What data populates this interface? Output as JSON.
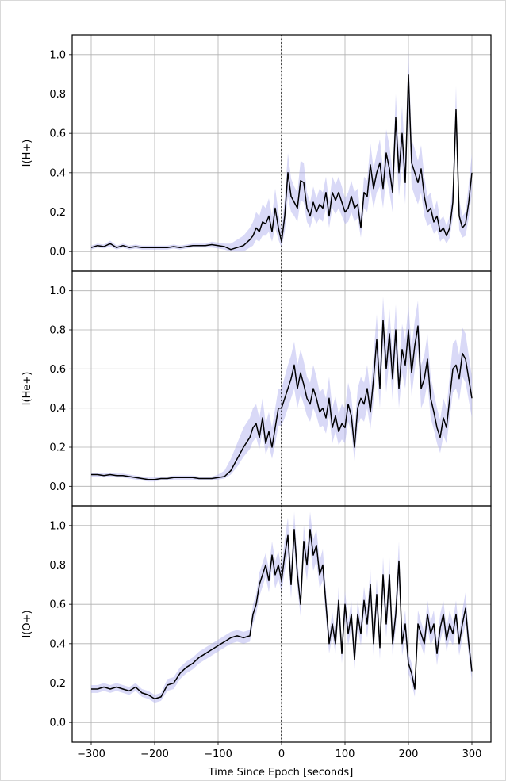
{
  "chart_data": [
    {
      "type": "line",
      "ylabel": "I(H+)",
      "xlim": [
        -330,
        330
      ],
      "ylim": [
        -0.1,
        1.1
      ],
      "yticks": [
        0.0,
        0.2,
        0.4,
        0.6,
        0.8,
        1.0
      ],
      "grid": true,
      "epoch_line_x": 0,
      "band_color": "#aaaaee",
      "line_color": "#000000",
      "x": [
        -300,
        -290,
        -280,
        -270,
        -260,
        -250,
        -240,
        -230,
        -220,
        -210,
        -200,
        -190,
        -180,
        -170,
        -160,
        -150,
        -140,
        -130,
        -120,
        -110,
        -100,
        -90,
        -80,
        -70,
        -60,
        -50,
        -45,
        -40,
        -35,
        -30,
        -25,
        -20,
        -15,
        -10,
        -5,
        0,
        5,
        10,
        15,
        20,
        25,
        30,
        35,
        40,
        45,
        50,
        55,
        60,
        65,
        70,
        75,
        80,
        85,
        90,
        95,
        100,
        105,
        110,
        115,
        120,
        125,
        130,
        135,
        140,
        145,
        150,
        155,
        160,
        165,
        170,
        175,
        180,
        185,
        190,
        195,
        200,
        205,
        210,
        215,
        220,
        225,
        230,
        235,
        240,
        245,
        250,
        255,
        260,
        265,
        270,
        275,
        280,
        285,
        290,
        295,
        300
      ],
      "y": [
        0.02,
        0.03,
        0.025,
        0.04,
        0.02,
        0.03,
        0.02,
        0.025,
        0.02,
        0.02,
        0.02,
        0.02,
        0.02,
        0.025,
        0.02,
        0.025,
        0.03,
        0.03,
        0.03,
        0.035,
        0.03,
        0.025,
        0.01,
        0.02,
        0.03,
        0.06,
        0.08,
        0.12,
        0.1,
        0.15,
        0.14,
        0.18,
        0.1,
        0.22,
        0.12,
        0.05,
        0.18,
        0.4,
        0.28,
        0.25,
        0.22,
        0.36,
        0.35,
        0.22,
        0.18,
        0.25,
        0.2,
        0.24,
        0.22,
        0.3,
        0.18,
        0.3,
        0.26,
        0.3,
        0.25,
        0.2,
        0.22,
        0.28,
        0.22,
        0.24,
        0.12,
        0.3,
        0.28,
        0.44,
        0.32,
        0.4,
        0.45,
        0.32,
        0.5,
        0.42,
        0.3,
        0.68,
        0.4,
        0.6,
        0.35,
        0.9,
        0.45,
        0.4,
        0.35,
        0.42,
        0.28,
        0.2,
        0.22,
        0.15,
        0.18,
        0.1,
        0.12,
        0.08,
        0.12,
        0.25,
        0.72,
        0.18,
        0.12,
        0.14,
        0.25,
        0.4
      ],
      "band_lower": [
        0.01,
        0.02,
        0.015,
        0.025,
        0.01,
        0.02,
        0.01,
        0.015,
        0.01,
        0.01,
        0.01,
        0.01,
        0.01,
        0.015,
        0.01,
        0.015,
        0.02,
        0.02,
        0.02,
        0.02,
        0.015,
        0.01,
        0.0,
        0.0,
        0.0,
        0.02,
        0.03,
        0.06,
        0.05,
        0.08,
        0.08,
        0.1,
        0.05,
        0.12,
        0.06,
        0.02,
        0.1,
        0.28,
        0.2,
        0.18,
        0.15,
        0.26,
        0.25,
        0.15,
        0.12,
        0.18,
        0.14,
        0.17,
        0.15,
        0.22,
        0.12,
        0.22,
        0.19,
        0.22,
        0.18,
        0.14,
        0.15,
        0.2,
        0.15,
        0.17,
        0.07,
        0.22,
        0.2,
        0.32,
        0.22,
        0.3,
        0.33,
        0.22,
        0.38,
        0.3,
        0.2,
        0.55,
        0.28,
        0.45,
        0.24,
        0.75,
        0.33,
        0.28,
        0.24,
        0.3,
        0.18,
        0.13,
        0.14,
        0.09,
        0.11,
        0.05,
        0.07,
        0.04,
        0.07,
        0.17,
        0.6,
        0.11,
        0.07,
        0.08,
        0.17,
        0.3
      ],
      "band_upper": [
        0.03,
        0.04,
        0.035,
        0.055,
        0.03,
        0.04,
        0.03,
        0.035,
        0.03,
        0.03,
        0.03,
        0.03,
        0.03,
        0.035,
        0.03,
        0.035,
        0.04,
        0.04,
        0.04,
        0.05,
        0.045,
        0.04,
        0.04,
        0.06,
        0.08,
        0.12,
        0.15,
        0.2,
        0.18,
        0.24,
        0.22,
        0.27,
        0.18,
        0.32,
        0.2,
        0.1,
        0.27,
        0.5,
        0.37,
        0.33,
        0.3,
        0.46,
        0.45,
        0.3,
        0.25,
        0.33,
        0.27,
        0.32,
        0.3,
        0.38,
        0.25,
        0.38,
        0.34,
        0.38,
        0.33,
        0.27,
        0.3,
        0.36,
        0.3,
        0.32,
        0.18,
        0.38,
        0.36,
        0.55,
        0.42,
        0.5,
        0.57,
        0.42,
        0.62,
        0.54,
        0.4,
        0.8,
        0.52,
        0.74,
        0.46,
        1.02,
        0.57,
        0.52,
        0.46,
        0.54,
        0.38,
        0.28,
        0.3,
        0.21,
        0.26,
        0.16,
        0.18,
        0.13,
        0.18,
        0.34,
        0.84,
        0.26,
        0.18,
        0.2,
        0.34,
        0.5
      ]
    },
    {
      "type": "line",
      "ylabel": "I(He+)",
      "xlim": [
        -330,
        330
      ],
      "ylim": [
        -0.1,
        1.1
      ],
      "yticks": [
        0.0,
        0.2,
        0.4,
        0.6,
        0.8,
        1.0
      ],
      "grid": true,
      "epoch_line_x": 0,
      "band_color": "#aaaaee",
      "line_color": "#000000",
      "x": [
        -300,
        -290,
        -280,
        -270,
        -260,
        -250,
        -240,
        -230,
        -220,
        -210,
        -200,
        -190,
        -180,
        -170,
        -160,
        -150,
        -140,
        -130,
        -120,
        -110,
        -100,
        -90,
        -80,
        -70,
        -60,
        -50,
        -45,
        -40,
        -35,
        -30,
        -25,
        -20,
        -15,
        -10,
        -5,
        0,
        5,
        10,
        15,
        20,
        25,
        30,
        35,
        40,
        45,
        50,
        55,
        60,
        65,
        70,
        75,
        80,
        85,
        90,
        95,
        100,
        105,
        110,
        115,
        120,
        125,
        130,
        135,
        140,
        145,
        150,
        155,
        160,
        165,
        170,
        175,
        180,
        185,
        190,
        195,
        200,
        205,
        210,
        215,
        220,
        225,
        230,
        235,
        240,
        245,
        250,
        255,
        260,
        265,
        270,
        275,
        280,
        285,
        290,
        295,
        300
      ],
      "y": [
        0.06,
        0.06,
        0.055,
        0.06,
        0.055,
        0.055,
        0.05,
        0.045,
        0.04,
        0.035,
        0.035,
        0.04,
        0.04,
        0.045,
        0.045,
        0.045,
        0.045,
        0.04,
        0.04,
        0.04,
        0.045,
        0.05,
        0.08,
        0.14,
        0.2,
        0.25,
        0.3,
        0.32,
        0.25,
        0.35,
        0.22,
        0.28,
        0.2,
        0.3,
        0.4,
        0.4,
        0.45,
        0.5,
        0.55,
        0.62,
        0.5,
        0.58,
        0.52,
        0.45,
        0.42,
        0.5,
        0.45,
        0.38,
        0.4,
        0.35,
        0.45,
        0.3,
        0.36,
        0.28,
        0.32,
        0.3,
        0.42,
        0.36,
        0.2,
        0.4,
        0.45,
        0.42,
        0.5,
        0.38,
        0.55,
        0.75,
        0.5,
        0.85,
        0.6,
        0.78,
        0.55,
        0.8,
        0.5,
        0.7,
        0.62,
        0.8,
        0.58,
        0.72,
        0.82,
        0.5,
        0.55,
        0.65,
        0.45,
        0.38,
        0.3,
        0.25,
        0.35,
        0.3,
        0.45,
        0.6,
        0.62,
        0.55,
        0.68,
        0.65,
        0.55,
        0.45
      ],
      "band_lower": [
        0.05,
        0.05,
        0.045,
        0.05,
        0.045,
        0.045,
        0.04,
        0.035,
        0.03,
        0.025,
        0.025,
        0.03,
        0.03,
        0.035,
        0.035,
        0.035,
        0.035,
        0.03,
        0.03,
        0.03,
        0.035,
        0.04,
        0.06,
        0.1,
        0.15,
        0.19,
        0.23,
        0.25,
        0.19,
        0.28,
        0.16,
        0.21,
        0.14,
        0.22,
        0.31,
        0.31,
        0.35,
        0.4,
        0.45,
        0.5,
        0.4,
        0.47,
        0.42,
        0.36,
        0.33,
        0.4,
        0.36,
        0.3,
        0.31,
        0.27,
        0.36,
        0.22,
        0.28,
        0.21,
        0.24,
        0.22,
        0.33,
        0.28,
        0.13,
        0.31,
        0.35,
        0.33,
        0.4,
        0.29,
        0.44,
        0.62,
        0.4,
        0.72,
        0.48,
        0.66,
        0.44,
        0.68,
        0.4,
        0.58,
        0.5,
        0.68,
        0.46,
        0.6,
        0.7,
        0.4,
        0.44,
        0.53,
        0.35,
        0.29,
        0.22,
        0.17,
        0.26,
        0.22,
        0.35,
        0.48,
        0.5,
        0.44,
        0.56,
        0.53,
        0.44,
        0.35
      ],
      "band_upper": [
        0.07,
        0.07,
        0.065,
        0.07,
        0.065,
        0.065,
        0.06,
        0.055,
        0.05,
        0.045,
        0.045,
        0.05,
        0.05,
        0.055,
        0.055,
        0.055,
        0.055,
        0.05,
        0.05,
        0.05,
        0.06,
        0.08,
        0.14,
        0.22,
        0.3,
        0.35,
        0.4,
        0.42,
        0.35,
        0.45,
        0.32,
        0.38,
        0.3,
        0.4,
        0.5,
        0.5,
        0.56,
        0.62,
        0.67,
        0.74,
        0.62,
        0.7,
        0.64,
        0.56,
        0.53,
        0.62,
        0.56,
        0.48,
        0.5,
        0.45,
        0.56,
        0.4,
        0.46,
        0.37,
        0.42,
        0.4,
        0.53,
        0.46,
        0.29,
        0.5,
        0.56,
        0.53,
        0.62,
        0.48,
        0.67,
        0.88,
        0.62,
        0.97,
        0.73,
        0.91,
        0.67,
        0.93,
        0.62,
        0.83,
        0.75,
        0.93,
        0.71,
        0.85,
        0.95,
        0.62,
        0.67,
        0.78,
        0.56,
        0.48,
        0.4,
        0.34,
        0.45,
        0.4,
        0.56,
        0.73,
        0.75,
        0.67,
        0.81,
        0.78,
        0.67,
        0.56
      ]
    },
    {
      "type": "line",
      "ylabel": "I(O+)",
      "xlabel": "Time Since Epoch [seconds]",
      "xlim": [
        -330,
        330
      ],
      "ylim": [
        -0.1,
        1.1
      ],
      "xticks": [
        -300,
        -200,
        -100,
        0,
        100,
        200,
        300
      ],
      "xticklabels": [
        "−300",
        "−200",
        "−100",
        "0",
        "100",
        "200",
        "300"
      ],
      "yticks": [
        0.0,
        0.2,
        0.4,
        0.6,
        0.8,
        1.0
      ],
      "grid": true,
      "epoch_line_x": 0,
      "band_color": "#aaaaee",
      "line_color": "#000000",
      "x": [
        -300,
        -290,
        -280,
        -270,
        -260,
        -250,
        -240,
        -230,
        -220,
        -210,
        -200,
        -190,
        -180,
        -170,
        -160,
        -150,
        -140,
        -130,
        -120,
        -110,
        -100,
        -90,
        -80,
        -70,
        -60,
        -50,
        -45,
        -40,
        -35,
        -30,
        -25,
        -20,
        -15,
        -10,
        -5,
        0,
        5,
        10,
        15,
        20,
        25,
        30,
        35,
        40,
        45,
        50,
        55,
        60,
        65,
        70,
        75,
        80,
        85,
        90,
        95,
        100,
        105,
        110,
        115,
        120,
        125,
        130,
        135,
        140,
        145,
        150,
        155,
        160,
        165,
        170,
        175,
        180,
        185,
        190,
        195,
        200,
        205,
        210,
        215,
        220,
        225,
        230,
        235,
        240,
        245,
        250,
        255,
        260,
        265,
        270,
        275,
        280,
        285,
        290,
        295,
        300
      ],
      "y": [
        0.17,
        0.17,
        0.18,
        0.17,
        0.18,
        0.17,
        0.16,
        0.18,
        0.15,
        0.14,
        0.12,
        0.13,
        0.19,
        0.2,
        0.25,
        0.28,
        0.3,
        0.33,
        0.35,
        0.37,
        0.39,
        0.41,
        0.43,
        0.44,
        0.43,
        0.44,
        0.55,
        0.6,
        0.7,
        0.75,
        0.8,
        0.72,
        0.85,
        0.75,
        0.8,
        0.72,
        0.85,
        0.95,
        0.7,
        0.98,
        0.75,
        0.6,
        0.92,
        0.8,
        0.98,
        0.85,
        0.9,
        0.75,
        0.8,
        0.6,
        0.4,
        0.5,
        0.4,
        0.62,
        0.35,
        0.6,
        0.45,
        0.55,
        0.32,
        0.55,
        0.45,
        0.62,
        0.5,
        0.7,
        0.4,
        0.65,
        0.38,
        0.75,
        0.5,
        0.75,
        0.4,
        0.55,
        0.82,
        0.4,
        0.5,
        0.3,
        0.25,
        0.17,
        0.5,
        0.45,
        0.4,
        0.55,
        0.45,
        0.5,
        0.35,
        0.48,
        0.55,
        0.42,
        0.5,
        0.45,
        0.55,
        0.4,
        0.5,
        0.58,
        0.4,
        0.26
      ],
      "band_lower": [
        0.15,
        0.15,
        0.16,
        0.15,
        0.16,
        0.15,
        0.14,
        0.16,
        0.13,
        0.12,
        0.1,
        0.11,
        0.16,
        0.17,
        0.22,
        0.25,
        0.27,
        0.3,
        0.32,
        0.34,
        0.36,
        0.38,
        0.4,
        0.41,
        0.4,
        0.41,
        0.5,
        0.55,
        0.64,
        0.69,
        0.74,
        0.66,
        0.78,
        0.68,
        0.73,
        0.66,
        0.77,
        0.86,
        0.63,
        0.89,
        0.68,
        0.54,
        0.84,
        0.72,
        0.89,
        0.77,
        0.82,
        0.68,
        0.72,
        0.53,
        0.35,
        0.44,
        0.35,
        0.55,
        0.3,
        0.53,
        0.39,
        0.48,
        0.27,
        0.48,
        0.39,
        0.55,
        0.43,
        0.62,
        0.34,
        0.57,
        0.32,
        0.66,
        0.43,
        0.66,
        0.34,
        0.48,
        0.72,
        0.34,
        0.43,
        0.25,
        0.2,
        0.13,
        0.43,
        0.39,
        0.34,
        0.48,
        0.39,
        0.43,
        0.29,
        0.41,
        0.48,
        0.36,
        0.43,
        0.39,
        0.48,
        0.34,
        0.43,
        0.5,
        0.34,
        0.21
      ],
      "band_upper": [
        0.19,
        0.19,
        0.2,
        0.19,
        0.2,
        0.19,
        0.18,
        0.2,
        0.17,
        0.16,
        0.14,
        0.15,
        0.22,
        0.23,
        0.28,
        0.31,
        0.33,
        0.36,
        0.38,
        0.4,
        0.42,
        0.44,
        0.46,
        0.47,
        0.46,
        0.47,
        0.6,
        0.65,
        0.76,
        0.81,
        0.86,
        0.78,
        0.92,
        0.82,
        0.87,
        0.78,
        0.93,
        1.04,
        0.77,
        1.07,
        0.82,
        0.66,
        1.0,
        0.88,
        1.07,
        0.93,
        0.98,
        0.82,
        0.88,
        0.67,
        0.45,
        0.56,
        0.45,
        0.69,
        0.4,
        0.67,
        0.51,
        0.62,
        0.37,
        0.62,
        0.51,
        0.69,
        0.57,
        0.78,
        0.46,
        0.73,
        0.44,
        0.84,
        0.57,
        0.84,
        0.46,
        0.62,
        0.92,
        0.46,
        0.57,
        0.35,
        0.3,
        0.21,
        0.57,
        0.51,
        0.46,
        0.62,
        0.51,
        0.57,
        0.41,
        0.55,
        0.62,
        0.48,
        0.57,
        0.51,
        0.62,
        0.46,
        0.57,
        0.66,
        0.46,
        0.31
      ]
    }
  ]
}
